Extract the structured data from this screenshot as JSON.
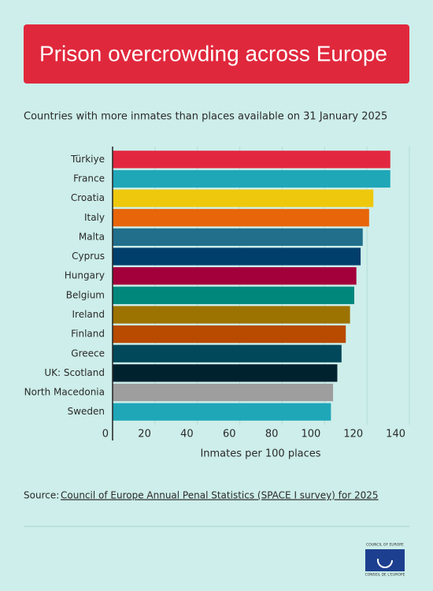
{
  "chart_data": {
    "type": "barh",
    "title": "Prison overcrowding across Europe",
    "subtitle": "Countries with more inmates than places available on 31 January 2025",
    "x_label": "Inmates per 100 places",
    "categories": [
      "Türkiye",
      "France",
      "Croatia",
      "Italy",
      "Malta",
      "Cyprus",
      "Hungary",
      "Belgium",
      "Ireland",
      "Finland",
      "Greece",
      "UK: Scotland",
      "North Macedonia",
      "Sweden"
    ],
    "values": [
      131,
      131,
      123,
      121,
      118,
      117,
      115,
      114,
      112,
      110,
      108,
      106,
      104,
      103
    ],
    "colors": [
      "#e3263f",
      "#1fa7b8",
      "#eec80c",
      "#e8650a",
      "#216f8b",
      "#003e6c",
      "#a3003b",
      "#00877c",
      "#9c7200",
      "#b84b00",
      "#00485a",
      "#00222f",
      "#9e9e9e",
      "#1fa7b8"
    ],
    "xlim": [
      0,
      140
    ],
    "xticks": [
      0,
      20,
      40,
      60,
      80,
      100,
      120,
      140
    ],
    "grid": true,
    "source_prefix": "Source:",
    "source_link": "Council of Europe Annual Penal Statistics (SPACE I survey) for 2025"
  },
  "logo": {
    "line1": "COUNCIL OF EUROPE",
    "line2": "CONSEIL DE L'EUROPE"
  }
}
